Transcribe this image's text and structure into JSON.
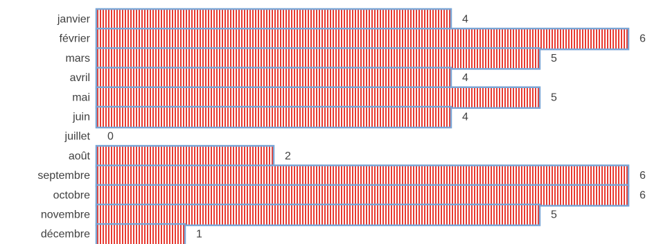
{
  "chart_data": {
    "type": "bar",
    "orientation": "horizontal",
    "categories": [
      "janvier",
      "février",
      "mars",
      "avril",
      "mai",
      "juin",
      "juillet",
      "août",
      "septembre",
      "octobre",
      "novembre",
      "décembre"
    ],
    "values": [
      4,
      6,
      5,
      4,
      5,
      4,
      0,
      2,
      6,
      6,
      5,
      1
    ],
    "xlim": [
      0,
      6
    ],
    "grid": false,
    "legend": "none",
    "data_labels": true,
    "bar_fill_pattern": "vertical-stripes",
    "colors": {
      "stripe": "#e8392f",
      "stripe_background": "#ffffff",
      "bar_border": "#7aa6d6",
      "text": "#404040"
    }
  }
}
